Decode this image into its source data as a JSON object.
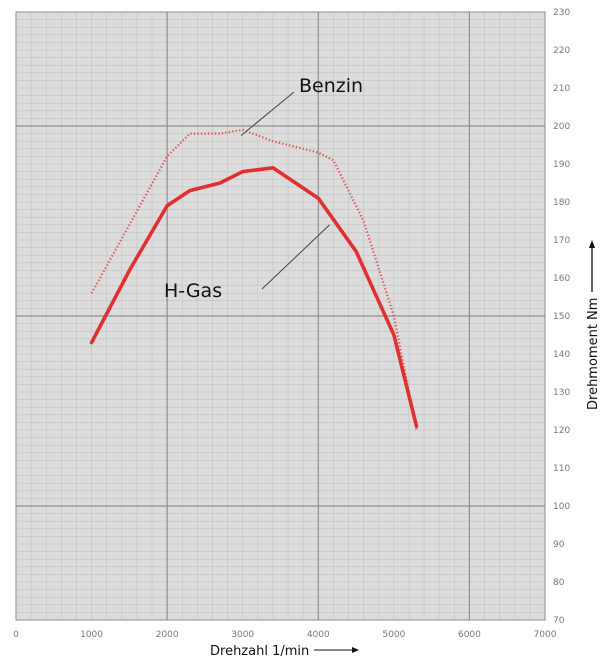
{
  "chart_data": {
    "type": "line",
    "xlabel": "Drehzahl 1/min",
    "ylabel": "Drehmoment Nm",
    "xlim": [
      0,
      7000
    ],
    "ylim": [
      70,
      230
    ],
    "x_ticks": [
      "0",
      "1000",
      "2000",
      "3000",
      "4000",
      "5000",
      "6000",
      "7000"
    ],
    "y_ticks": [
      "70",
      "80",
      "90",
      "100",
      "110",
      "120",
      "130",
      "140",
      "150",
      "160",
      "170",
      "180",
      "190",
      "200",
      "210",
      "220",
      "230"
    ],
    "grid": true,
    "series": [
      {
        "name": "Benzin",
        "color": "#e05050",
        "style": "dotted",
        "points": [
          [
            1000,
            156
          ],
          [
            1500,
            174
          ],
          [
            2000,
            192
          ],
          [
            2300,
            198
          ],
          [
            2700,
            198
          ],
          [
            3000,
            199
          ],
          [
            3400,
            196
          ],
          [
            4000,
            193
          ],
          [
            4200,
            191
          ],
          [
            4600,
            175
          ],
          [
            5000,
            150
          ],
          [
            5300,
            120
          ]
        ]
      },
      {
        "name": "H-Gas",
        "color": "#e03030",
        "style": "solid",
        "points": [
          [
            1000,
            143
          ],
          [
            1500,
            162
          ],
          [
            2000,
            179
          ],
          [
            2300,
            183
          ],
          [
            2700,
            185
          ],
          [
            3000,
            188
          ],
          [
            3400,
            189
          ],
          [
            4000,
            181
          ],
          [
            4500,
            167
          ],
          [
            5000,
            145
          ],
          [
            5300,
            121
          ]
        ]
      }
    ]
  },
  "labels": {
    "benzin": "Benzin",
    "hgas": "H-Gas"
  },
  "colors": {
    "plot_bg": "#dcdcdc",
    "major_grid": "#8e8e8e",
    "minor_grid": "#c2c2c2",
    "leader_line": "#444444"
  }
}
